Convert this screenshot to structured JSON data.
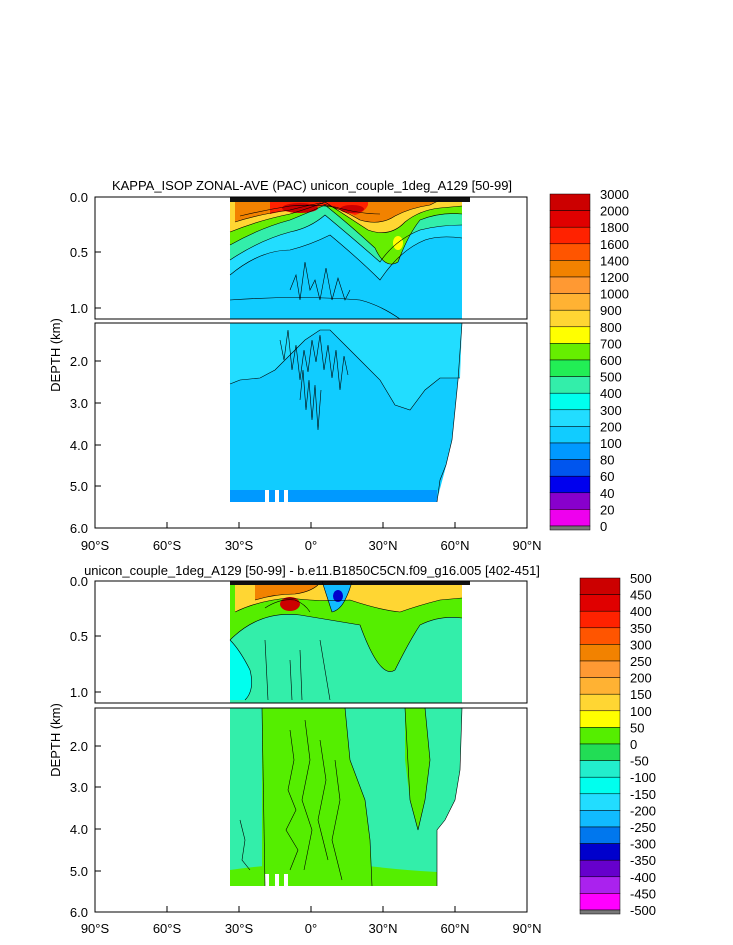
{
  "chart_data": [
    {
      "type": "contour",
      "title": "KAPPA_ISOP ZONAL-AVE (PAC) unicon_couple_1deg_A129 [50-99]",
      "ylabel": "DEPTH (km)",
      "x_tick_labels": [
        "90°S",
        "60°S",
        "30°S",
        "0°",
        "30°N",
        "60°N",
        "90°N"
      ],
      "x_tick_values": [
        -90,
        -60,
        -30,
        0,
        30,
        60,
        90
      ],
      "xlim": [
        -90,
        90
      ],
      "upper_y_ticks": [
        "0.0",
        "0.5",
        "1.0"
      ],
      "upper_y_values": [
        0,
        0.5,
        1.0
      ],
      "upper_ylim": [
        0,
        1.1
      ],
      "lower_y_ticks": [
        "2.0",
        "3.0",
        "4.0",
        "5.0",
        "6.0"
      ],
      "lower_y_values": [
        2,
        3,
        4,
        5,
        6
      ],
      "lower_ylim": [
        1.1,
        6.0
      ],
      "colorbar": {
        "labels": [
          "3000",
          "2000",
          "1800",
          "1600",
          "1400",
          "1200",
          "1000",
          "900",
          "800",
          "700",
          "600",
          "500",
          "400",
          "300",
          "200",
          "100",
          "80",
          "60",
          "40",
          "20",
          "0"
        ],
        "colors": [
          "#cc0000",
          "#e00000",
          "#ff2200",
          "#ff5500",
          "#f28200",
          "#ff9933",
          "#ffb233",
          "#ffd633",
          "#ffff00",
          "#66ee00",
          "#22ee55",
          "#33eeaa",
          "#00ffee",
          "#22ddff",
          "#11ccff",
          "#0099ff",
          "#0055ee",
          "#0000ee",
          "#8800cc",
          "#ee00ee",
          "#cccccc",
          "#777777"
        ]
      }
    },
    {
      "type": "contour",
      "title": "unicon_couple_1deg_A129 [50-99] - b.e11.B1850C5CN.f09_g16.005 [402-451]",
      "ylabel": "DEPTH (km)",
      "x_tick_labels": [
        "90°S",
        "60°S",
        "30°S",
        "0°",
        "30°N",
        "60°N",
        "90°N"
      ],
      "x_tick_values": [
        -90,
        -60,
        -30,
        0,
        30,
        60,
        90
      ],
      "xlim": [
        -90,
        90
      ],
      "upper_y_ticks": [
        "0.0",
        "0.5",
        "1.0"
      ],
      "upper_y_values": [
        0,
        0.5,
        1.0
      ],
      "upper_ylim": [
        0,
        1.1
      ],
      "lower_y_ticks": [
        "2.0",
        "3.0",
        "4.0",
        "5.0",
        "6.0"
      ],
      "lower_y_values": [
        2,
        3,
        4,
        5,
        6
      ],
      "lower_ylim": [
        1.1,
        6.0
      ],
      "colorbar": {
        "labels": [
          "500",
          "450",
          "400",
          "350",
          "300",
          "250",
          "200",
          "150",
          "100",
          "50",
          "0",
          "-50",
          "-100",
          "-150",
          "-200",
          "-250",
          "-300",
          "-350",
          "-400",
          "-450",
          "-500"
        ],
        "colors": [
          "#cc0000",
          "#e00000",
          "#ff2200",
          "#ff5500",
          "#f28200",
          "#ff9933",
          "#ffb233",
          "#ffd633",
          "#ffff00",
          "#55ee00",
          "#22dd55",
          "#22eecc",
          "#00ffee",
          "#22ddff",
          "#11bbff",
          "#0077ee",
          "#0000cc",
          "#6600cc",
          "#aa22ee",
          "#ff00ff",
          "#cccccc",
          "#777777"
        ]
      }
    }
  ]
}
